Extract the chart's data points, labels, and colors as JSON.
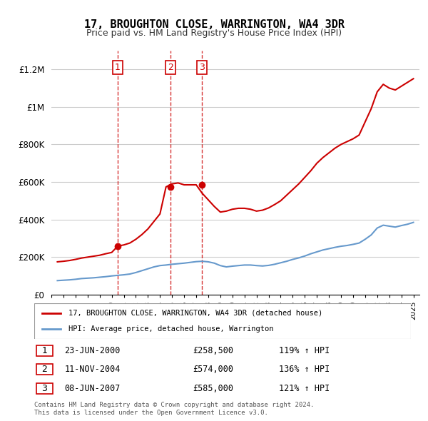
{
  "title": "17, BROUGHTON CLOSE, WARRINGTON, WA4 3DR",
  "subtitle": "Price paid vs. HM Land Registry's House Price Index (HPI)",
  "ylabel_ticks": [
    "£0",
    "£200K",
    "£400K",
    "£600K",
    "£800K",
    "£1M",
    "£1.2M"
  ],
  "ytick_values": [
    0,
    200000,
    400000,
    600000,
    800000,
    1000000,
    1200000
  ],
  "ylim": [
    0,
    1300000
  ],
  "xlim_start": 1995.5,
  "xlim_end": 2025.5,
  "red_color": "#cc0000",
  "blue_color": "#6699cc",
  "dashed_red": "#cc0000",
  "legend_label_red": "17, BROUGHTON CLOSE, WARRINGTON, WA4 3DR (detached house)",
  "legend_label_blue": "HPI: Average price, detached house, Warrington",
  "transactions": [
    {
      "num": 1,
      "date": "23-JUN-2000",
      "price": 258500,
      "pct": "119%",
      "year": 2000.5
    },
    {
      "num": 2,
      "date": "11-NOV-2004",
      "price": 574000,
      "pct": "136%",
      "year": 2004.85
    },
    {
      "num": 3,
      "date": "08-JUN-2007",
      "price": 585000,
      "pct": "121%",
      "year": 2007.45
    }
  ],
  "footer": "Contains HM Land Registry data © Crown copyright and database right 2024.\nThis data is licensed under the Open Government Licence v3.0.",
  "hpi_data": {
    "years": [
      1995.5,
      1996,
      1996.5,
      1997,
      1997.5,
      1998,
      1998.5,
      1999,
      1999.5,
      2000,
      2000.5,
      2001,
      2001.5,
      2002,
      2002.5,
      2003,
      2003.5,
      2004,
      2004.5,
      2005,
      2005.5,
      2006,
      2006.5,
      2007,
      2007.5,
      2008,
      2008.5,
      2009,
      2009.5,
      2010,
      2010.5,
      2011,
      2011.5,
      2012,
      2012.5,
      2013,
      2013.5,
      2014,
      2014.5,
      2015,
      2015.5,
      2016,
      2016.5,
      2017,
      2017.5,
      2018,
      2018.5,
      2019,
      2019.5,
      2020,
      2020.5,
      2021,
      2021.5,
      2022,
      2022.5,
      2023,
      2023.5,
      2024,
      2024.5,
      2025
    ],
    "values": [
      75000,
      77000,
      79000,
      82000,
      86000,
      88000,
      90000,
      93000,
      96000,
      100000,
      103000,
      106000,
      110000,
      118000,
      128000,
      138000,
      148000,
      155000,
      158000,
      162000,
      165000,
      168000,
      172000,
      176000,
      178000,
      175000,
      168000,
      155000,
      148000,
      152000,
      155000,
      158000,
      158000,
      155000,
      153000,
      156000,
      162000,
      170000,
      178000,
      188000,
      196000,
      206000,
      218000,
      228000,
      238000,
      245000,
      252000,
      258000,
      262000,
      268000,
      275000,
      295000,
      318000,
      355000,
      370000,
      365000,
      360000,
      368000,
      375000,
      385000
    ]
  },
  "red_data": {
    "years": [
      1995.5,
      1996,
      1996.5,
      1997,
      1997.5,
      1998,
      1998.5,
      1999,
      1999.5,
      2000,
      2000.5,
      2001,
      2001.5,
      2002,
      2002.5,
      2003,
      2003.5,
      2004,
      2004.5,
      2005,
      2005.5,
      2006,
      2006.5,
      2007,
      2007.5,
      2008,
      2008.5,
      2009,
      2009.5,
      2010,
      2010.5,
      2011,
      2011.5,
      2012,
      2012.5,
      2013,
      2013.5,
      2014,
      2014.5,
      2015,
      2015.5,
      2016,
      2016.5,
      2017,
      2017.5,
      2018,
      2018.5,
      2019,
      2019.5,
      2020,
      2020.5,
      2021,
      2021.5,
      2022,
      2022.5,
      2023,
      2023.5,
      2024,
      2024.5,
      2025
    ],
    "values": [
      175000,
      178000,
      182000,
      188000,
      195000,
      200000,
      205000,
      210000,
      218000,
      225000,
      258500,
      265000,
      275000,
      295000,
      320000,
      350000,
      390000,
      430000,
      574000,
      590000,
      595000,
      585000,
      585000,
      585000,
      540000,
      505000,
      470000,
      440000,
      445000,
      455000,
      460000,
      460000,
      455000,
      445000,
      450000,
      462000,
      480000,
      500000,
      530000,
      560000,
      590000,
      625000,
      660000,
      700000,
      730000,
      755000,
      780000,
      800000,
      815000,
      830000,
      850000,
      920000,
      990000,
      1080000,
      1120000,
      1100000,
      1090000,
      1110000,
      1130000,
      1150000
    ]
  }
}
